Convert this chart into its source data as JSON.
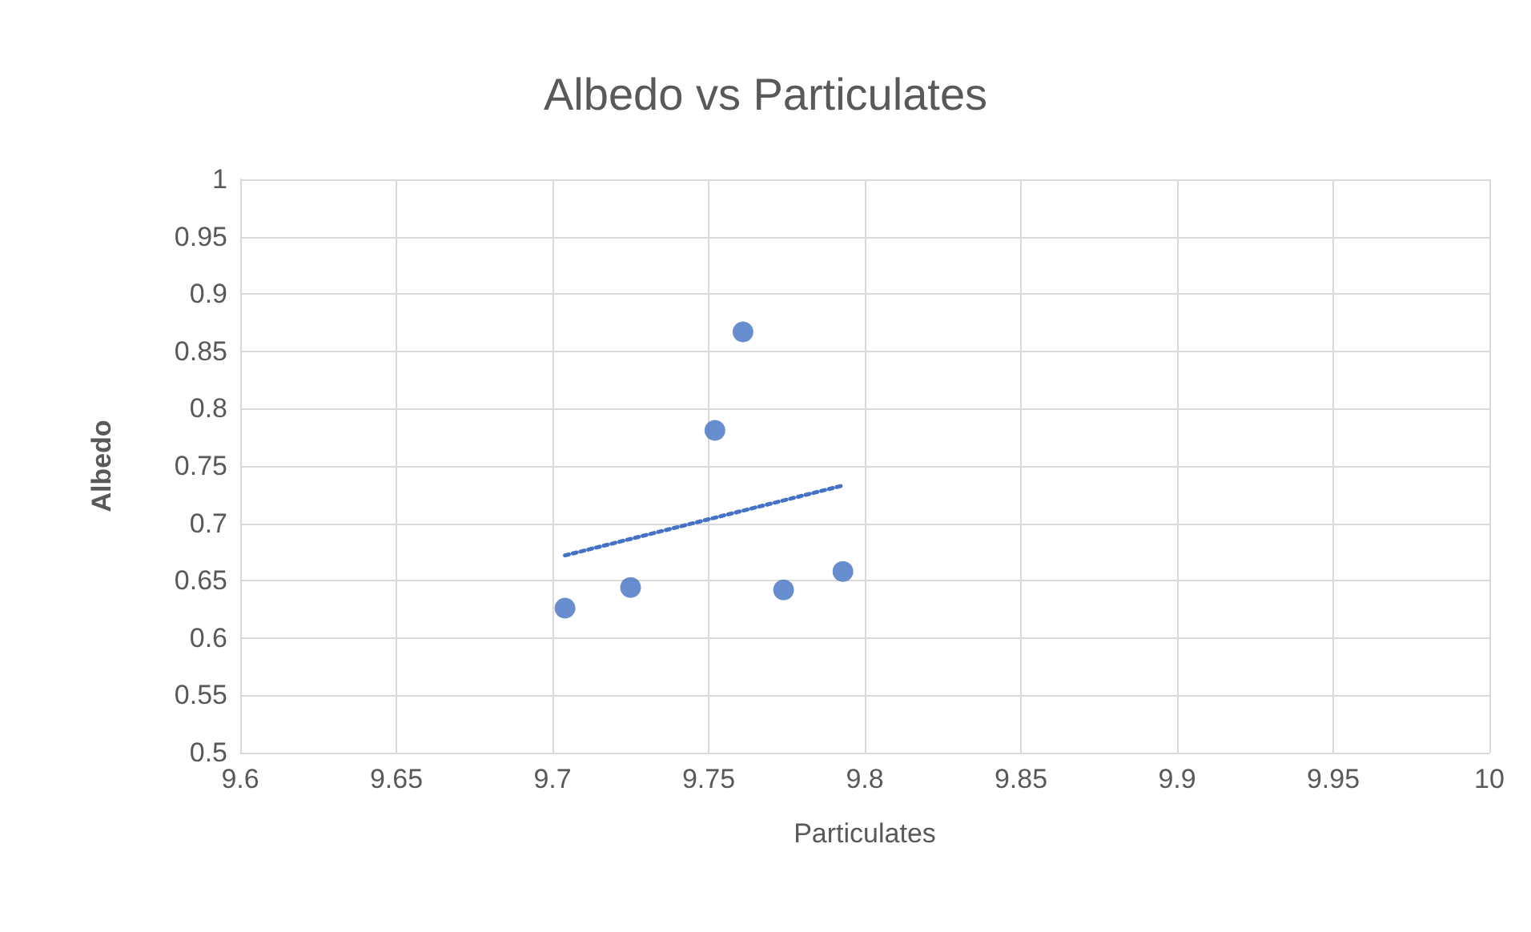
{
  "chart_data": {
    "type": "scatter",
    "title": "Albedo vs Particulates",
    "xlabel": "Particulates",
    "ylabel": "Albedo",
    "x": [
      9.704,
      9.725,
      9.752,
      9.761,
      9.774,
      9.793
    ],
    "series": [
      {
        "color": "#4472c4",
        "marker": "circle",
        "values": [
          0.626,
          0.644,
          0.781,
          0.867,
          0.642,
          0.658
        ]
      },
      {
        "type": "line",
        "color": "#4472c4",
        "line_style": "dotted",
        "marker": "none",
        "x": [
          9.704,
          9.793
        ],
        "values": [
          0.672,
          0.733
        ]
      }
    ],
    "xlim": [
      9.6,
      10
    ],
    "xticks": [
      9.6,
      9.65,
      9.7,
      9.75,
      9.8,
      9.85,
      9.9,
      9.95,
      10
    ],
    "ylim": [
      0.5,
      1
    ],
    "yticks": [
      0.5,
      0.55,
      0.6,
      0.65,
      0.7,
      0.75,
      0.8,
      0.85,
      0.9,
      0.95,
      1
    ],
    "grid": true
  }
}
